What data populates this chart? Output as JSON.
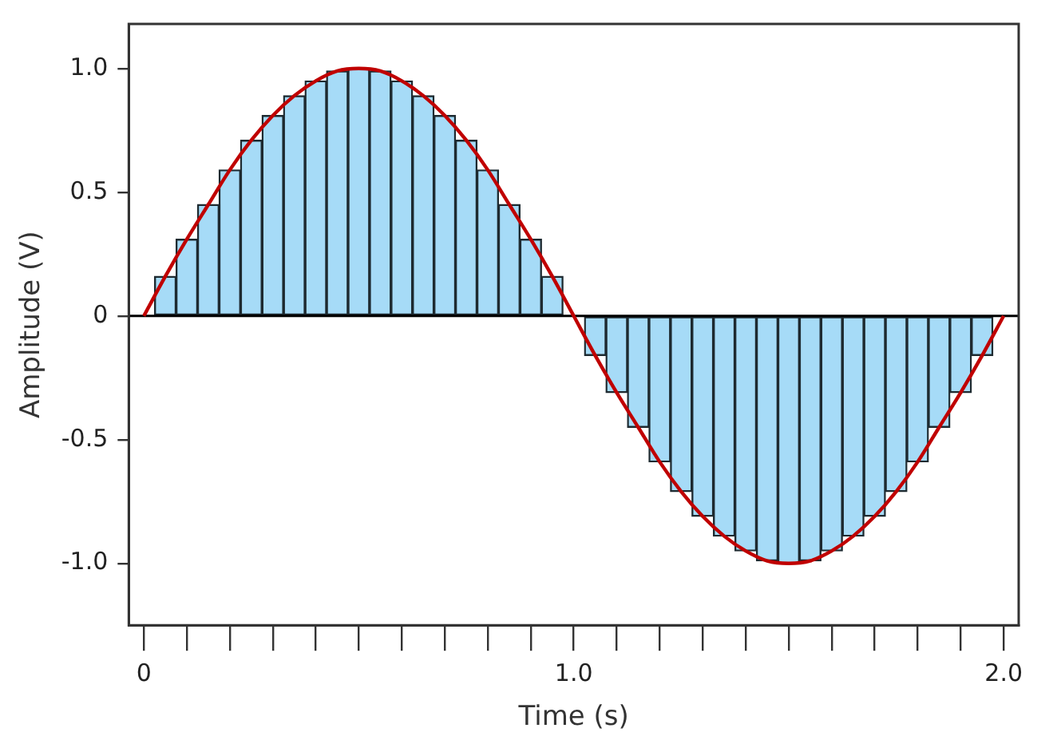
{
  "chart_data": {
    "type": "bar",
    "xlabel": "Time (s)",
    "ylabel": "Amplitude (V)",
    "xlim": [
      -0.035,
      2.035
    ],
    "ylim": [
      -1.25,
      1.18
    ],
    "xticks": [
      0,
      {
        "value": 0.1,
        "label": null
      },
      {
        "value": 0.2,
        "label": null
      },
      {
        "value": 0.3,
        "label": null
      },
      {
        "value": 0.4,
        "label": null
      },
      {
        "value": 0.5,
        "label": null
      },
      {
        "value": 0.6,
        "label": null
      },
      {
        "value": 0.7,
        "label": null
      },
      {
        "value": 0.8,
        "label": null
      },
      {
        "value": 0.9,
        "label": null
      },
      {
        "value": 1,
        "label": "1.0"
      },
      {
        "value": 1.1,
        "label": null
      },
      {
        "value": 1.2,
        "label": null
      },
      {
        "value": 1.3,
        "label": null
      },
      {
        "value": 1.4,
        "label": null
      },
      {
        "value": 1.5,
        "label": null
      },
      {
        "value": 1.6,
        "label": null
      },
      {
        "value": 1.7,
        "label": null
      },
      {
        "value": 1.8,
        "label": null
      },
      {
        "value": 1.9,
        "label": null
      },
      {
        "value": 2,
        "label": "2.0"
      }
    ],
    "yticks": [
      {
        "value": -1,
        "label": "-1.0"
      },
      -0.5,
      0,
      0.5,
      {
        "value": 1,
        "label": "1.0"
      }
    ],
    "grid": false,
    "legend": false,
    "marker": "none",
    "ref_lines": [
      {
        "axis": "y",
        "value": 0,
        "color": "#000000"
      }
    ],
    "series": [
      {
        "color": "#a6dbf7",
        "x": [
          0.05,
          0.1,
          0.15,
          0.2,
          0.25,
          0.3,
          0.35,
          0.4,
          0.45,
          0.5,
          0.55,
          0.6,
          0.65,
          0.7,
          0.75,
          0.8,
          0.85,
          0.9,
          0.95,
          1.0,
          1.05,
          1.1,
          1.15,
          1.2,
          1.25,
          1.3,
          1.35,
          1.4,
          1.45,
          1.5,
          1.55,
          1.6,
          1.65,
          1.7,
          1.75,
          1.8,
          1.85,
          1.9,
          1.95
        ],
        "values": [
          0.16,
          0.31,
          0.45,
          0.59,
          0.71,
          0.81,
          0.89,
          0.95,
          0.99,
          1.0,
          0.99,
          0.95,
          0.89,
          0.81,
          0.71,
          0.59,
          0.45,
          0.31,
          0.16,
          0,
          -0.16,
          -0.31,
          -0.45,
          -0.59,
          -0.71,
          -0.81,
          -0.89,
          -0.95,
          -0.99,
          -1.0,
          -0.99,
          -0.95,
          -0.89,
          -0.81,
          -0.71,
          -0.59,
          -0.45,
          -0.31,
          -0.16
        ]
      },
      {
        "type": "line",
        "color": "#c00000",
        "x": [
          0,
          0.05,
          0.1,
          0.15,
          0.2,
          0.25,
          0.3,
          0.35,
          0.4,
          0.45,
          0.5,
          0.55,
          0.6,
          0.65,
          0.7,
          0.75,
          0.8,
          0.85,
          0.9,
          0.95,
          1.0,
          1.05,
          1.1,
          1.15,
          1.2,
          1.25,
          1.3,
          1.35,
          1.4,
          1.45,
          1.5,
          1.55,
          1.6,
          1.65,
          1.7,
          1.75,
          1.8,
          1.85,
          1.9,
          1.95,
          2.0
        ],
        "values": [
          0,
          0.16,
          0.31,
          0.45,
          0.59,
          0.71,
          0.81,
          0.89,
          0.95,
          0.99,
          1.0,
          0.99,
          0.95,
          0.89,
          0.81,
          0.71,
          0.59,
          0.45,
          0.31,
          0.16,
          0,
          -0.16,
          -0.31,
          -0.45,
          -0.59,
          -0.71,
          -0.81,
          -0.89,
          -0.95,
          -0.99,
          -1.0,
          -0.99,
          -0.95,
          -0.89,
          -0.81,
          -0.71,
          -0.59,
          -0.45,
          -0.31,
          -0.16,
          0
        ]
      }
    ]
  }
}
